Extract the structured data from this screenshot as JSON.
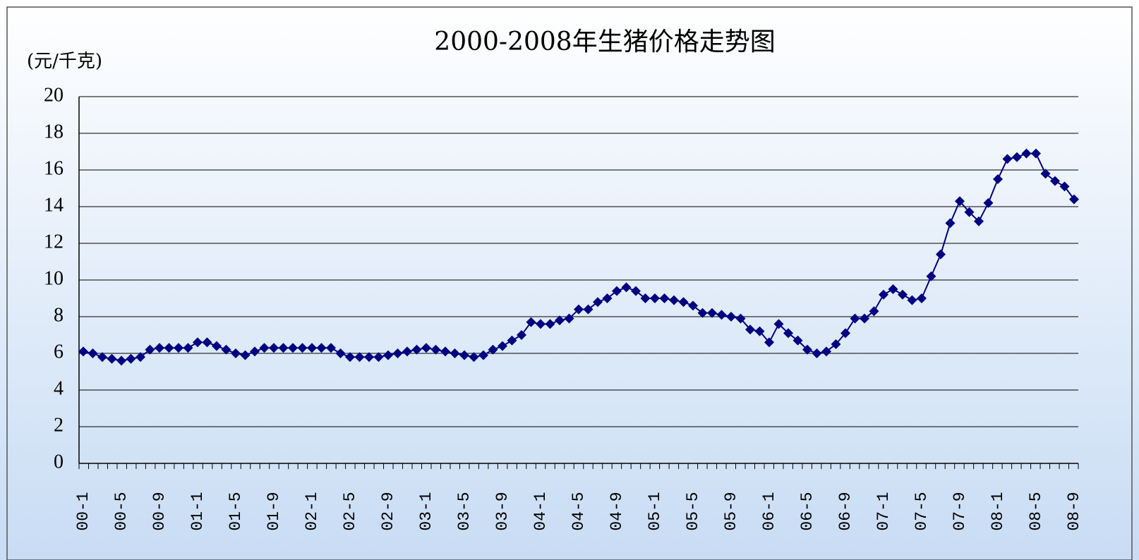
{
  "chart_data": {
    "type": "line",
    "title": "2000-2008年生猪价格走势图",
    "y_label": "(元/千克)",
    "categories": [
      "00-1",
      null,
      null,
      null,
      "00-5",
      null,
      null,
      null,
      "00-9",
      null,
      null,
      null,
      "01-1",
      null,
      null,
      null,
      "01-5",
      null,
      null,
      null,
      "01-9",
      null,
      null,
      null,
      "02-1",
      null,
      null,
      null,
      "02-5",
      null,
      null,
      null,
      "02-9",
      null,
      null,
      null,
      "03-1",
      null,
      null,
      null,
      "03-5",
      null,
      null,
      null,
      "03-9",
      null,
      null,
      null,
      "04-1",
      null,
      null,
      null,
      "04-5",
      null,
      null,
      null,
      "04-9",
      null,
      null,
      null,
      "05-1",
      null,
      null,
      null,
      "05-5",
      null,
      null,
      null,
      "05-9",
      null,
      null,
      null,
      "06-1",
      null,
      null,
      null,
      "06-5",
      null,
      null,
      null,
      "06-9",
      null,
      null,
      null,
      "07-1",
      null,
      null,
      null,
      "07-5",
      null,
      null,
      null,
      "07-9",
      null,
      null,
      null,
      "08-1",
      null,
      null,
      null,
      "08-5",
      null,
      null,
      null,
      "08-9"
    ],
    "series": [
      {
        "name": "生猪价格",
        "color": "#000080",
        "values": [
          6.1,
          6.0,
          5.8,
          5.7,
          5.6,
          5.7,
          5.8,
          6.2,
          6.3,
          6.3,
          6.3,
          6.3,
          6.6,
          6.6,
          6.4,
          6.2,
          6.0,
          5.9,
          6.1,
          6.3,
          6.3,
          6.3,
          6.3,
          6.3,
          6.3,
          6.3,
          6.3,
          6.0,
          5.8,
          5.8,
          5.8,
          5.8,
          5.9,
          6.0,
          6.1,
          6.2,
          6.3,
          6.2,
          6.1,
          6.0,
          5.9,
          5.8,
          5.9,
          6.2,
          6.4,
          6.7,
          7.0,
          7.7,
          7.6,
          7.6,
          7.8,
          7.9,
          8.4,
          8.4,
          8.8,
          9.0,
          9.4,
          9.6,
          9.4,
          9.0,
          9.0,
          9.0,
          8.9,
          8.8,
          8.6,
          8.2,
          8.2,
          8.1,
          8.0,
          7.9,
          7.3,
          7.2,
          6.6,
          7.6,
          7.1,
          6.7,
          6.2,
          6.0,
          6.1,
          6.5,
          7.1,
          7.9,
          7.9,
          8.3,
          9.2,
          9.5,
          9.2,
          8.9,
          9.0,
          10.2,
          11.4,
          13.1,
          14.3,
          13.7,
          13.2,
          14.2,
          15.5,
          16.6,
          16.7,
          16.9,
          16.9,
          15.8,
          15.4,
          15.1,
          14.4
        ]
      }
    ],
    "ylim": [
      0,
      20
    ],
    "yticks": [
      0,
      2,
      4,
      6,
      8,
      10,
      12,
      14,
      16,
      18,
      20
    ],
    "grid": true
  }
}
